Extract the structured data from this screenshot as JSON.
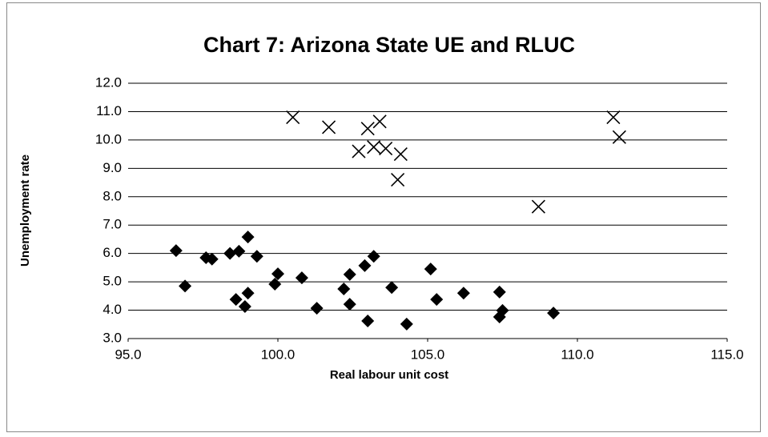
{
  "chart_data": {
    "type": "scatter",
    "title": "Chart 7: Arizona State UE and RLUC",
    "xlabel": "Real labour unit cost",
    "ylabel": "Unemployment rate",
    "xlim": [
      95,
      115
    ],
    "ylim": [
      3,
      12
    ],
    "xticks": [
      {
        "value": 95,
        "label": "95.0"
      },
      {
        "value": 100,
        "label": "100.0"
      },
      {
        "value": 105,
        "label": "105.0"
      },
      {
        "value": 110,
        "label": "110.0"
      },
      {
        "value": 115,
        "label": "115.0"
      }
    ],
    "yticks": [
      {
        "value": 3,
        "label": "3.0"
      },
      {
        "value": 4,
        "label": "4.0"
      },
      {
        "value": 5,
        "label": "5.0"
      },
      {
        "value": 6,
        "label": "6.0"
      },
      {
        "value": 7,
        "label": "7.0"
      },
      {
        "value": 8,
        "label": "8.0"
      },
      {
        "value": 9,
        "label": "9.0"
      },
      {
        "value": 10,
        "label": "10.0"
      },
      {
        "value": 11,
        "label": "11.0"
      },
      {
        "value": 12,
        "label": "12.0"
      }
    ],
    "grid": true,
    "series": [
      {
        "marker": "diamond",
        "color": "#000000",
        "x": [
          96.6,
          96.9,
          97.6,
          97.8,
          98.4,
          98.7,
          99.0,
          99.3,
          98.6,
          99.0,
          98.9,
          99.9,
          100.0,
          100.8,
          101.3,
          102.2,
          102.4,
          102.4,
          102.9,
          103.2,
          103.0,
          103.8,
          104.3,
          105.1,
          105.3,
          106.2,
          107.4,
          107.5,
          107.4,
          109.2
        ],
        "values": [
          6.1,
          4.85,
          5.85,
          5.8,
          6.0,
          6.08,
          6.58,
          5.9,
          4.38,
          4.6,
          4.13,
          4.92,
          5.28,
          5.14,
          4.07,
          4.75,
          5.26,
          4.21,
          5.57,
          5.9,
          3.62,
          4.8,
          3.51,
          5.45,
          4.38,
          4.6,
          4.64,
          3.99,
          3.76,
          3.9
        ]
      },
      {
        "marker": "x",
        "color": "#000000",
        "x": [
          100.5,
          101.7,
          102.7,
          103.0,
          103.2,
          103.4,
          103.6,
          104.1,
          104.0,
          108.7,
          111.2,
          111.4
        ],
        "values": [
          10.8,
          10.45,
          9.6,
          10.4,
          9.75,
          10.65,
          9.7,
          9.5,
          8.6,
          7.65,
          10.8,
          10.1
        ]
      }
    ]
  }
}
